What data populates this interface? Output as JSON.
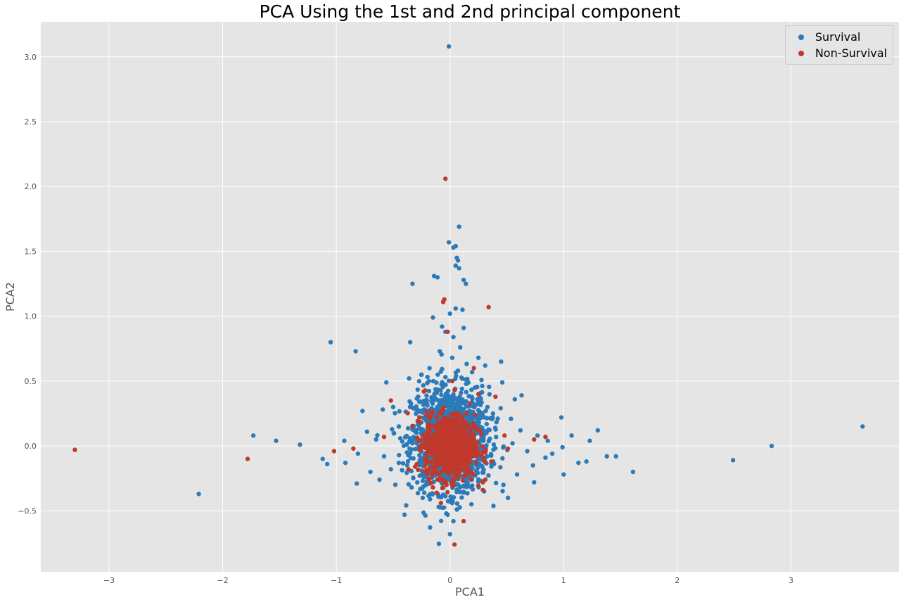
{
  "chart_data": {
    "type": "scatter",
    "title": "PCA Using the 1st and 2nd principal component",
    "xlabel": "PCA1",
    "ylabel": "PCA2",
    "xlim": [
      -3.6,
      3.95
    ],
    "ylim": [
      -0.97,
      3.27
    ],
    "xticks": [
      -3,
      -2,
      -1,
      0,
      1,
      2,
      3
    ],
    "xtick_labels": [
      "−3",
      "−2",
      "−1",
      "0",
      "1",
      "2",
      "3"
    ],
    "yticks": [
      -0.5,
      0.0,
      0.5,
      1.0,
      1.5,
      2.0,
      2.5,
      3.0
    ],
    "ytick_labels": [
      "−0.5",
      "0.0",
      "0.5",
      "1.0",
      "1.5",
      "2.0",
      "2.5",
      "3.0"
    ],
    "grid": true,
    "legend_position": "top-right",
    "series": [
      {
        "name": "Survival",
        "color": "#2b7bba",
        "points": [
          [
            -0.01,
            3.08
          ],
          [
            0.08,
            1.69
          ],
          [
            -0.01,
            1.57
          ],
          [
            0.05,
            1.54
          ],
          [
            0.03,
            1.53
          ],
          [
            0.06,
            1.45
          ],
          [
            0.07,
            1.43
          ],
          [
            0.05,
            1.39
          ],
          [
            0.08,
            1.37
          ],
          [
            -0.14,
            1.31
          ],
          [
            -0.11,
            1.3
          ],
          [
            0.12,
            1.28
          ],
          [
            0.14,
            1.25
          ],
          [
            -0.33,
            1.25
          ],
          [
            0.11,
            1.05
          ],
          [
            0.05,
            1.06
          ],
          [
            -0.15,
            0.99
          ],
          [
            -1.05,
            0.8
          ],
          [
            -0.83,
            0.73
          ],
          [
            -0.35,
            0.8
          ],
          [
            0.12,
            0.91
          ],
          [
            -0.07,
            0.92
          ],
          [
            0.45,
            0.65
          ],
          [
            0.25,
            0.68
          ],
          [
            0.31,
            0.62
          ],
          [
            -0.18,
            0.6
          ],
          [
            -0.36,
            0.52
          ],
          [
            0.46,
            0.49
          ],
          [
            -0.56,
            0.49
          ],
          [
            0.57,
            0.36
          ],
          [
            0.63,
            0.39
          ],
          [
            -0.77,
            0.27
          ],
          [
            -0.73,
            0.11
          ],
          [
            -0.81,
            -0.06
          ],
          [
            -0.93,
            0.04
          ],
          [
            -0.92,
            -0.13
          ],
          [
            -1.12,
            -0.1
          ],
          [
            -1.08,
            -0.14
          ],
          [
            -1.73,
            0.08
          ],
          [
            -1.53,
            0.04
          ],
          [
            -1.32,
            0.01
          ],
          [
            -2.21,
            -0.37
          ],
          [
            -0.82,
            -0.29
          ],
          [
            -0.62,
            -0.26
          ],
          [
            -0.4,
            -0.53
          ],
          [
            -0.24,
            -0.4
          ],
          [
            0.47,
            -0.3
          ],
          [
            0.51,
            -0.4
          ],
          [
            0.59,
            -0.22
          ],
          [
            0.74,
            -0.28
          ],
          [
            0.84,
            -0.09
          ],
          [
            1.0,
            -0.22
          ],
          [
            0.99,
            -0.01
          ],
          [
            0.98,
            0.22
          ],
          [
            1.07,
            0.08
          ],
          [
            1.13,
            -0.13
          ],
          [
            1.2,
            -0.12
          ],
          [
            1.23,
            0.04
          ],
          [
            1.3,
            0.12
          ],
          [
            1.38,
            -0.08
          ],
          [
            1.46,
            -0.08
          ],
          [
            1.61,
            -0.2
          ],
          [
            0.73,
            -0.15
          ],
          [
            0.77,
            0.08
          ],
          [
            0.9,
            -0.06
          ],
          [
            0.86,
            0.04
          ],
          [
            2.49,
            -0.11
          ],
          [
            2.83,
            0.0
          ],
          [
            3.63,
            0.15
          ],
          [
            0.0,
            -0.68
          ],
          [
            0.03,
            -0.58
          ],
          [
            -0.02,
            -0.53
          ],
          [
            0.06,
            -0.49
          ],
          [
            0.02,
            -0.44
          ],
          [
            -0.1,
            -0.47
          ],
          [
            0.12,
            -0.36
          ],
          [
            -0.07,
            -0.29
          ],
          [
            0.17,
            -0.18
          ],
          [
            0.2,
            0.12
          ],
          [
            -0.2,
            0.18
          ],
          [
            0.1,
            0.33
          ],
          [
            -0.05,
            0.47
          ],
          [
            0.07,
            0.58
          ],
          [
            -0.09,
            0.73
          ],
          [
            0.03,
            0.84
          ],
          [
            -0.28,
            0.38
          ],
          [
            0.33,
            0.3
          ],
          [
            -0.45,
            0.15
          ],
          [
            0.38,
            -0.12
          ],
          [
            0.15,
            -0.02
          ],
          [
            -0.33,
            0.02
          ],
          [
            -0.58,
            -0.08
          ],
          [
            0.55,
            0.02
          ],
          [
            -0.25,
            0.55
          ],
          [
            0.22,
            0.45
          ],
          [
            -0.65,
            0.05
          ],
          [
            0.68,
            -0.04
          ],
          [
            -0.52,
            -0.18
          ],
          [
            0.42,
            0.21
          ],
          [
            0.02,
            0.68
          ],
          [
            0.09,
            0.76
          ],
          [
            -0.04,
            0.88
          ],
          [
            0.0,
            1.02
          ],
          [
            -0.5,
            0.3
          ],
          [
            0.3,
            -0.35
          ],
          [
            -0.7,
            -0.2
          ],
          [
            0.62,
            0.12
          ],
          [
            -0.02,
            0.26
          ],
          [
            0.04,
            -0.22
          ],
          [
            -0.12,
            0.1
          ]
        ],
        "cluster": {
          "center": [
            0.0,
            0.05
          ],
          "count": 1400,
          "spread_x": 0.17,
          "spread_y": 0.2
        }
      },
      {
        "name": "Non-Survival",
        "color": "#c0392b",
        "points": [
          [
            -0.04,
            2.06
          ],
          [
            0.34,
            1.07
          ],
          [
            -0.05,
            1.13
          ],
          [
            -0.06,
            1.11
          ],
          [
            -0.02,
            0.88
          ],
          [
            -3.3,
            -0.03
          ],
          [
            -1.78,
            -0.1
          ],
          [
            0.84,
            0.07
          ],
          [
            0.74,
            0.05
          ],
          [
            -0.52,
            0.35
          ],
          [
            -0.23,
            0.42
          ],
          [
            0.4,
            0.38
          ],
          [
            0.29,
            -0.34
          ],
          [
            0.29,
            -0.28
          ],
          [
            0.04,
            -0.76
          ],
          [
            -0.08,
            -0.44
          ],
          [
            -0.15,
            -0.32
          ],
          [
            -1.02,
            -0.04
          ],
          [
            -0.85,
            -0.02
          ],
          [
            -0.58,
            0.07
          ],
          [
            0.51,
            -0.02
          ],
          [
            0.48,
            0.08
          ],
          [
            0.21,
            0.6
          ],
          [
            0.02,
            0.5
          ],
          [
            -0.2,
            0.27
          ],
          [
            0.12,
            -0.58
          ],
          [
            -0.03,
            -0.3
          ],
          [
            0.25,
            0.4
          ]
        ],
        "cluster": {
          "center": [
            0.0,
            0.0
          ],
          "count": 900,
          "spread_x": 0.11,
          "spread_y": 0.12
        }
      }
    ]
  }
}
